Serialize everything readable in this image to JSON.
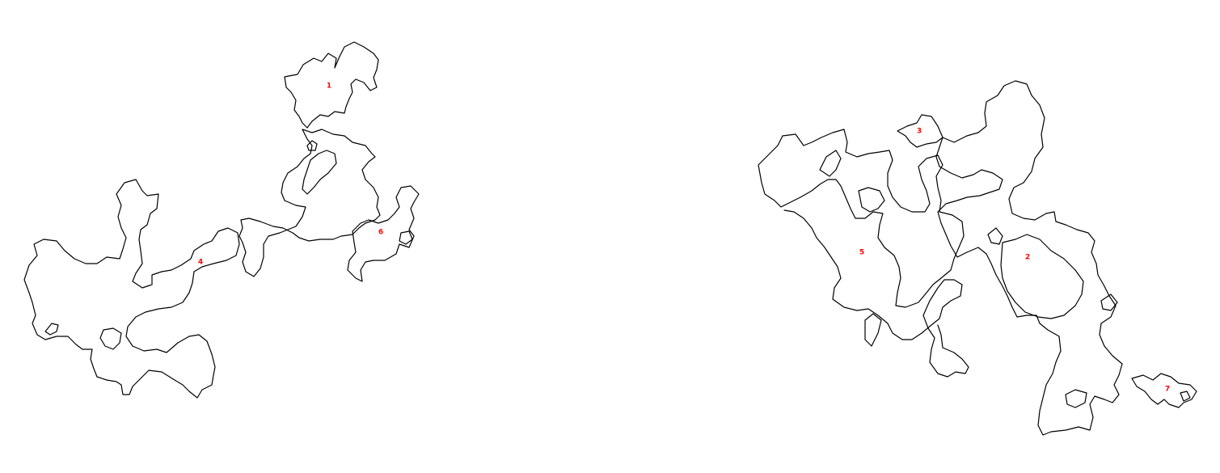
{
  "map": {
    "outline_color": "#000000",
    "label_color": "#ff0000",
    "background": "#ffffff",
    "regions": [
      {
        "id": "region-1",
        "label": "1"
      },
      {
        "id": "region-2",
        "label": "2"
      },
      {
        "id": "region-3",
        "label": "3"
      },
      {
        "id": "region-4",
        "label": "4"
      },
      {
        "id": "region-5",
        "label": "5"
      },
      {
        "id": "region-6",
        "label": "6"
      },
      {
        "id": "region-7",
        "label": "7"
      }
    ]
  }
}
